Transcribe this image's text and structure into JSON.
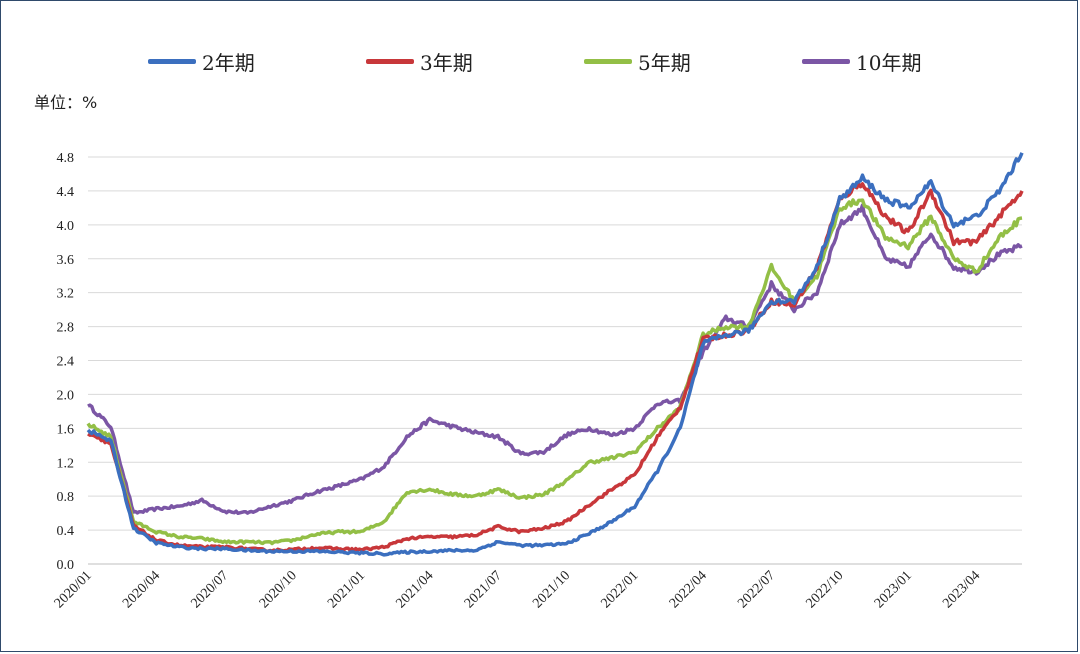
{
  "legend": {
    "items": [
      {
        "label": "2年期",
        "color": "#3b6fbf"
      },
      {
        "label": "3年期",
        "color": "#c8373a"
      },
      {
        "label": "5年期",
        "color": "#93bf46"
      },
      {
        "label": "10年期",
        "color": "#7b56a5"
      }
    ]
  },
  "unit_label": "单位：%",
  "chart_data": {
    "type": "line",
    "title": "",
    "ylabel": "单位：%",
    "xlabel": "",
    "ylim": [
      0,
      4.8
    ],
    "yticks": [
      "0.0",
      "0.4",
      "0.8",
      "1.2",
      "1.6",
      "2.0",
      "2.4",
      "2.8",
      "3.2",
      "3.6",
      "4.0",
      "4.4",
      "4.8"
    ],
    "xticks": [
      "2020/01",
      "2020/04",
      "2020/07",
      "2020/10",
      "2021/01",
      "2021/04",
      "2021/07",
      "2021/10",
      "2022/01",
      "2022/04",
      "2022/07",
      "2022/10",
      "2023/01",
      "2023/04"
    ],
    "x": [
      "2020/01",
      "2020/02",
      "2020/03",
      "2020/04",
      "2020/05",
      "2020/06",
      "2020/07",
      "2020/08",
      "2020/09",
      "2020/10",
      "2020/11",
      "2020/12",
      "2021/01",
      "2021/02",
      "2021/03",
      "2021/04",
      "2021/05",
      "2021/06",
      "2021/07",
      "2021/08",
      "2021/09",
      "2021/10",
      "2021/11",
      "2021/12",
      "2022/01",
      "2022/02",
      "2022/03",
      "2022/04",
      "2022/05",
      "2022/06",
      "2022/07",
      "2022/08",
      "2022/09",
      "2022/10",
      "2022/11",
      "2022/12",
      "2023/01",
      "2023/02",
      "2023/03",
      "2023/04",
      "2023/05",
      "2023/06"
    ],
    "series": [
      {
        "name": "2年期",
        "color": "#3b6fbf",
        "values": [
          1.58,
          1.45,
          0.42,
          0.25,
          0.2,
          0.18,
          0.18,
          0.16,
          0.15,
          0.15,
          0.15,
          0.14,
          0.13,
          0.12,
          0.14,
          0.15,
          0.16,
          0.16,
          0.26,
          0.22,
          0.22,
          0.24,
          0.36,
          0.5,
          0.68,
          1.1,
          1.6,
          2.6,
          2.7,
          2.75,
          3.1,
          3.1,
          3.5,
          4.3,
          4.55,
          4.3,
          4.2,
          4.5,
          4.0,
          4.1,
          4.4,
          4.85
        ]
      },
      {
        "name": "3年期",
        "color": "#c8373a",
        "values": [
          1.55,
          1.42,
          0.45,
          0.28,
          0.22,
          0.2,
          0.2,
          0.18,
          0.16,
          0.17,
          0.19,
          0.18,
          0.17,
          0.2,
          0.3,
          0.32,
          0.32,
          0.34,
          0.44,
          0.38,
          0.42,
          0.5,
          0.7,
          0.88,
          1.05,
          1.5,
          1.85,
          2.65,
          2.7,
          2.75,
          3.1,
          3.05,
          3.5,
          4.3,
          4.5,
          4.1,
          3.9,
          4.4,
          3.8,
          3.8,
          4.1,
          4.4
        ]
      },
      {
        "name": "5年期",
        "color": "#93bf46",
        "values": [
          1.65,
          1.5,
          0.5,
          0.38,
          0.32,
          0.3,
          0.26,
          0.26,
          0.25,
          0.28,
          0.35,
          0.38,
          0.38,
          0.5,
          0.85,
          0.88,
          0.82,
          0.8,
          0.88,
          0.78,
          0.82,
          0.98,
          1.2,
          1.25,
          1.32,
          1.6,
          1.85,
          2.7,
          2.8,
          2.8,
          3.5,
          3.1,
          3.4,
          4.2,
          4.3,
          3.85,
          3.75,
          4.1,
          3.6,
          3.45,
          3.85,
          4.08
        ]
      },
      {
        "name": "10年期",
        "color": "#7b56a5",
        "values": [
          1.88,
          1.62,
          0.6,
          0.65,
          0.68,
          0.75,
          0.62,
          0.6,
          0.68,
          0.75,
          0.85,
          0.92,
          1.0,
          1.15,
          1.5,
          1.7,
          1.62,
          1.55,
          1.5,
          1.3,
          1.32,
          1.52,
          1.6,
          1.52,
          1.6,
          1.9,
          1.92,
          2.5,
          2.9,
          2.8,
          3.3,
          3.0,
          3.2,
          4.0,
          4.2,
          3.6,
          3.5,
          3.9,
          3.5,
          3.45,
          3.65,
          3.75
        ]
      }
    ]
  }
}
